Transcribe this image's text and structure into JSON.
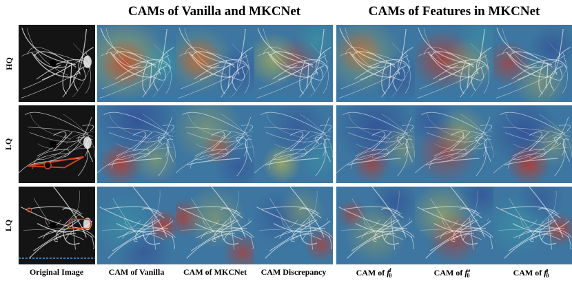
{
  "figure": {
    "titles": {
      "left": "CAMs of Vanilla and MKCNet",
      "right": "CAMs of Features in MKCNet"
    },
    "row_labels": [
      "HQ",
      "LQ",
      "LQ"
    ],
    "captions": {
      "original": "Original Image",
      "vanilla": "CAM of Vanilla",
      "mkcnet": "CAM of MKCNet",
      "discrepancy": "CAM Discrepancy",
      "f_d_prefix": "CAM of ",
      "f_d_sym": "f",
      "f_d_sup": "d",
      "f_d_sub": "θ",
      "f_w_prefix": "CAM of ",
      "f_w_sym": "f",
      "f_w_sup": "ω",
      "f_w_sub": "θ",
      "f_q_prefix": "CAM of ",
      "f_q_sym": "f",
      "f_q_sup": "q",
      "f_q_sub": "θ"
    },
    "colors": {
      "annotation_red": "#d2401f",
      "annotation_blue": "#4aa0e0",
      "heat_red": "#c8331f",
      "heat_yellow": "#d9c53a",
      "heat_cyan": "#3aa9a8",
      "heat_blue": "#2c3a8f"
    },
    "icons": [
      "retina-fundus-image",
      "cam-heatmap-overlay"
    ]
  }
}
